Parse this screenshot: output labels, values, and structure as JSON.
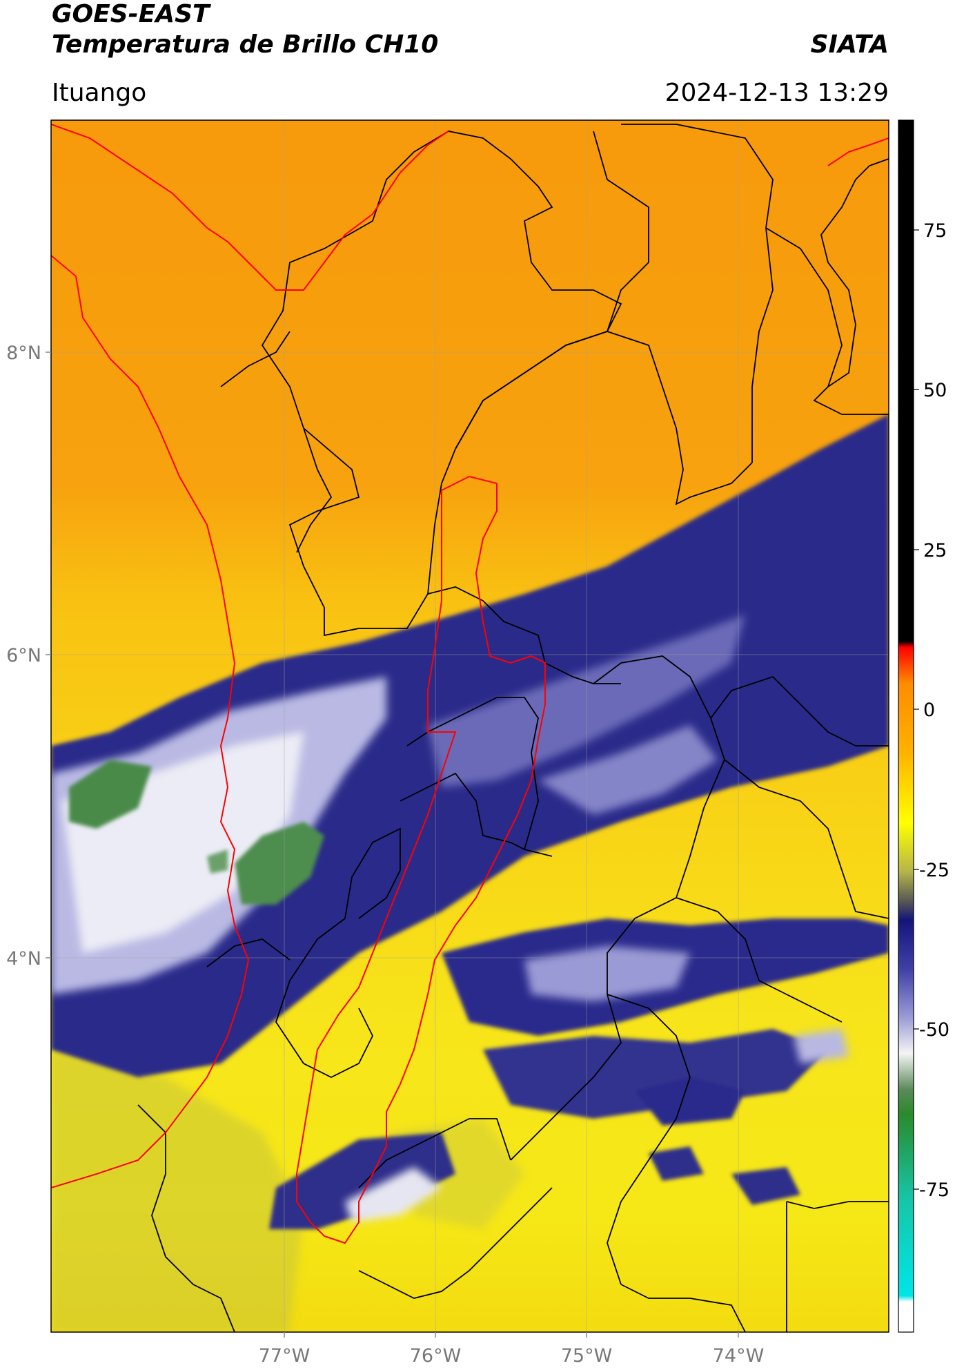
{
  "header": {
    "satellite": "GOES-EAST",
    "product": "Temperatura de Brillo CH10",
    "organization": "SIATA",
    "location": "Ituango",
    "timestamp": "2024-12-13 13:29"
  },
  "map": {
    "lon_labels": [
      "77°W",
      "76°W",
      "75°W",
      "74°W"
    ],
    "lat_labels": [
      "8°N",
      "6°N",
      "4°N"
    ],
    "boundary_colors": {
      "country": "#ff0000",
      "department": "#000000"
    },
    "colormap_stops": [
      "#000000",
      "#ff0000",
      "#ff8c00",
      "#ffb000",
      "#ffff00",
      "#b5b54a",
      "#555555",
      "#14147a",
      "#3f3fa6",
      "#9a9ad6",
      "#f4f4f4",
      "#5a8a5a",
      "#2a8a2a",
      "#16c5a8",
      "#00e6e6",
      "#ffffff"
    ]
  },
  "colorbar": {
    "ticks": [
      "75",
      "50",
      "25",
      "0",
      "-25",
      "-50",
      "-75"
    ]
  }
}
